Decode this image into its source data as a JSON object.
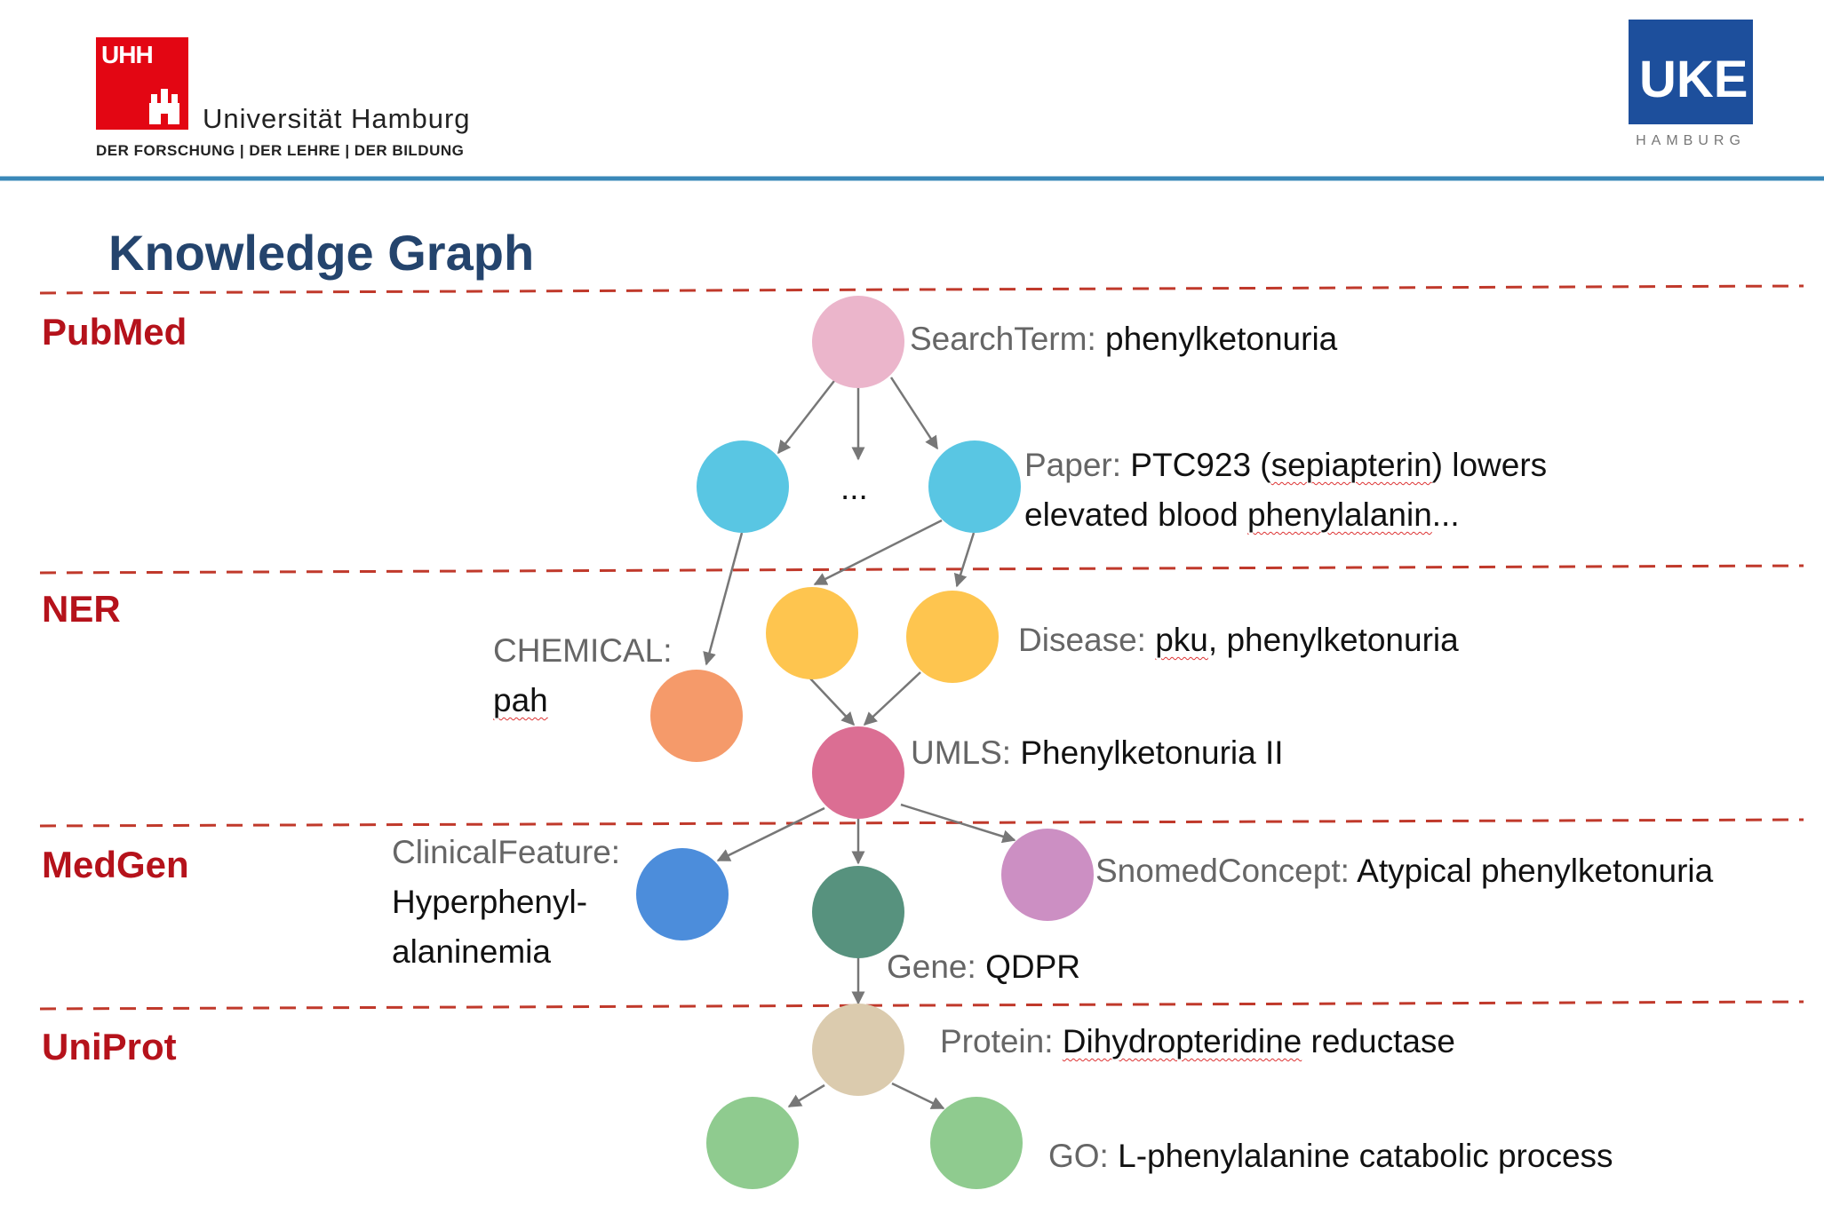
{
  "header": {
    "uhh_letters": "UHH",
    "uhh_name": "Universität Hamburg",
    "uhh_slogan": "DER FORSCHUNG  |  DER LEHRE  |  DER BILDUNG",
    "uke_letters": "UKE",
    "uke_city": "HAMBURG"
  },
  "title": "Knowledge Graph",
  "layers": [
    "PubMed",
    "NER",
    "MedGen",
    "UniProt"
  ],
  "nodes": {
    "search_term": {
      "type": "SearchTerm:",
      "text": "phenylketonuria",
      "color": "#ebb5cb"
    },
    "paper_left": {
      "color": "#59c6e3"
    },
    "paper_ellipsis": "...",
    "paper": {
      "type": "Paper:",
      "text_pre": "PTC923 (",
      "text_sq": "sepiapterin",
      "text_post": ") lowers",
      "line2_pre": "elevated blood ",
      "line2_sq": "phenylalanin",
      "line2_post": "...",
      "color": "#59c6e3"
    },
    "chemical": {
      "type": "CHEMICAL:",
      "text": "pah",
      "color": "#f59a6a"
    },
    "disease_left": {
      "color": "#fec54f"
    },
    "disease": {
      "type": "Disease:",
      "text_sq": "pku",
      "text_post": ", phenylketonuria",
      "color": "#fec54f"
    },
    "umls": {
      "type": "UMLS:",
      "text": "Phenylketonuria II",
      "color": "#db6e93"
    },
    "clinical_feature": {
      "type": "ClinicalFeature:",
      "line1": "Hyperphenyl-",
      "line2": "alaninemia",
      "color": "#4c8ddb"
    },
    "gene": {
      "type": "Gene:",
      "text": "QDPR",
      "color": "#57927e"
    },
    "snomed": {
      "type": "SnomedConcept:",
      "text": "Atypical phenylketonuria",
      "color": "#cc8fc3"
    },
    "protein": {
      "type": "Protein:",
      "text_sq": "Dihydropteridine",
      "text_post": " reductase",
      "color": "#dbcbae"
    },
    "go_left": {
      "color": "#8fcb8f"
    },
    "go": {
      "type": "GO:",
      "text": "L-phenylalanine catabolic process",
      "color": "#8fcb8f"
    }
  },
  "colors": {
    "title": "#24446d",
    "layer_label": "#b5121b",
    "divider": "#c0392b",
    "header_rule": "#3a88b8",
    "edge": "#777777",
    "uhh_red": "#e30613",
    "uke_blue": "#1d4f9c"
  }
}
